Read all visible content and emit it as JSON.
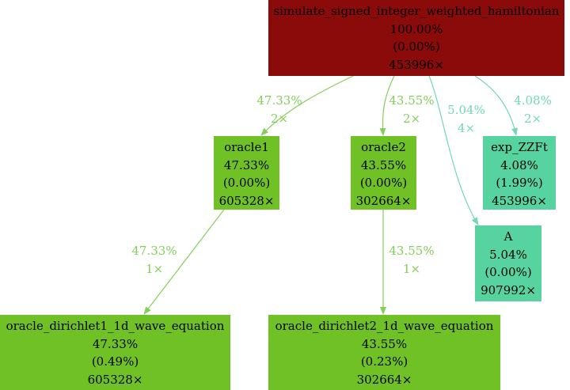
{
  "nodes": {
    "root": {
      "name": "simulate_signed_integer_weighted_hamiltonian",
      "total": "100.00%",
      "self": "(0.00%)",
      "calls": "453996×"
    },
    "oracle1": {
      "name": "oracle1",
      "total": "47.33%",
      "self": "(0.00%)",
      "calls": "605328×"
    },
    "oracle2": {
      "name": "oracle2",
      "total": "43.55%",
      "self": "(0.00%)",
      "calls": "302664×"
    },
    "exp_zzft": {
      "name": "exp_ZZFt",
      "total": "4.08%",
      "self": "(1.99%)",
      "calls": "453996×"
    },
    "a": {
      "name": "A",
      "total": "5.04%",
      "self": "(0.00%)",
      "calls": "907992×"
    },
    "dirichlet1": {
      "name": "oracle_dirichlet1_1d_wave_equation",
      "total": "47.33%",
      "self": "(0.49%)",
      "calls": "605328×"
    },
    "dirichlet2": {
      "name": "oracle_dirichlet2_1d_wave_equation",
      "total": "43.55%",
      "self": "(0.23%)",
      "calls": "302664×"
    }
  },
  "edges": {
    "root_oracle1": {
      "pct": "47.33%",
      "calls": "2×"
    },
    "root_oracle2": {
      "pct": "43.55%",
      "calls": "2×"
    },
    "root_a": {
      "pct": "5.04%",
      "calls": "4×"
    },
    "root_exp": {
      "pct": "4.08%",
      "calls": "2×"
    },
    "oracle1_d1": {
      "pct": "47.33%",
      "calls": "1×"
    },
    "oracle2_d2": {
      "pct": "43.55%",
      "calls": "1×"
    }
  },
  "colors": {
    "hot": "#8b0a0a",
    "green": "#6fc126",
    "teal": "#57d3a0",
    "edge_green": "#84cf59",
    "edge_teal": "#6fd9b4"
  }
}
